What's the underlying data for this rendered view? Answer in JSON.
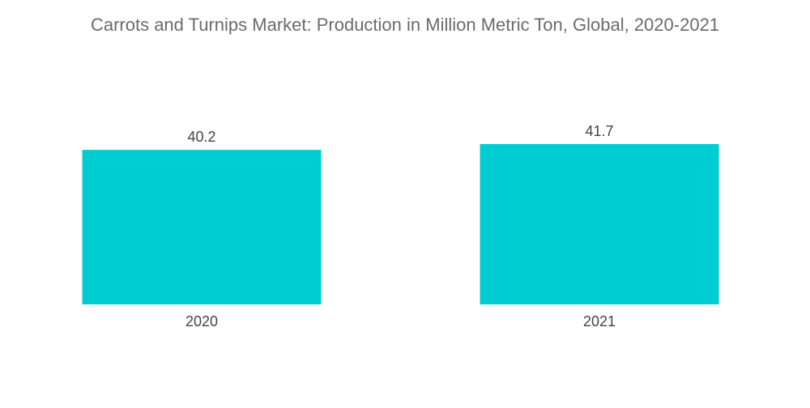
{
  "colors": {
    "bar": "#00cdd1",
    "title": "#6b6b6b",
    "label": "#444444"
  },
  "chart_data": {
    "type": "bar",
    "title": "Carrots and Turnips Market: Production in Million Metric Ton, Global, 2020-2021",
    "categories": [
      "2020",
      "2021"
    ],
    "values": [
      40.2,
      41.7
    ],
    "value_labels": [
      "40.2",
      "41.7"
    ],
    "xlabel": "",
    "ylabel": "",
    "ylim": [
      0,
      41.7
    ],
    "grid": false,
    "legend": "none"
  }
}
